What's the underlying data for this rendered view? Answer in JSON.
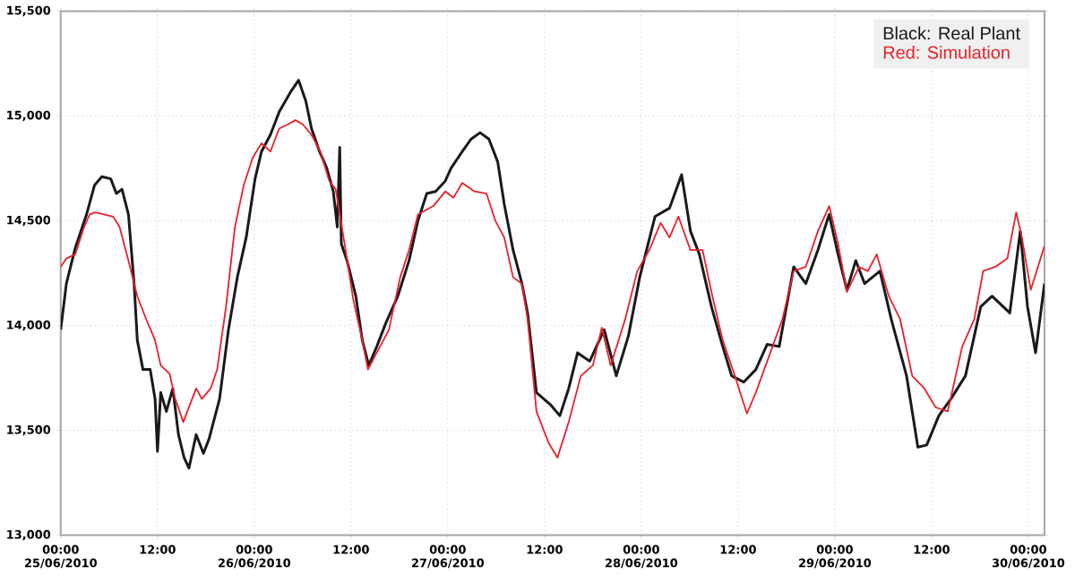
{
  "chart_data": {
    "type": "line",
    "series": [
      {
        "name": "Black: Real Plant",
        "color": "#1a1a1a",
        "x": [
          "2010-06-25T00:00",
          "2010-06-25T00:42",
          "2010-06-25T01:48",
          "2010-06-25T03:12",
          "2010-06-25T04:12",
          "2010-06-25T05:06",
          "2010-06-25T06:12",
          "2010-06-25T06:54",
          "2010-06-25T07:36",
          "2010-06-25T08:24",
          "2010-06-25T09:06",
          "2010-06-25T09:30",
          "2010-06-25T10:12",
          "2010-06-25T11:06",
          "2010-06-25T11:42",
          "2010-06-25T12:00",
          "2010-06-25T12:24",
          "2010-06-25T13:06",
          "2010-06-25T13:54",
          "2010-06-25T14:36",
          "2010-06-25T15:18",
          "2010-06-25T15:54",
          "2010-06-25T16:48",
          "2010-06-25T17:42",
          "2010-06-25T18:24",
          "2010-06-25T19:42",
          "2010-06-25T20:48",
          "2010-06-25T21:54",
          "2010-06-25T23:00",
          "2010-06-26T00:06",
          "2010-06-26T00:54",
          "2010-06-26T02:00",
          "2010-06-26T03:06",
          "2010-06-26T04:36",
          "2010-06-26T05:30",
          "2010-06-26T06:24",
          "2010-06-26T07:06",
          "2010-06-26T08:06",
          "2010-06-26T09:00",
          "2010-06-26T09:48",
          "2010-06-26T10:18",
          "2010-06-26T10:36",
          "2010-06-26T10:48",
          "2010-06-26T11:30",
          "2010-06-26T12:36",
          "2010-06-26T13:24",
          "2010-06-26T14:12",
          "2010-06-26T15:12",
          "2010-06-26T16:18",
          "2010-06-26T17:48",
          "2010-06-26T19:12",
          "2010-06-26T20:18",
          "2010-06-26T21:24",
          "2010-06-26T22:30",
          "2010-06-26T23:42",
          "2010-06-27T00:24",
          "2010-06-27T01:48",
          "2010-06-27T02:54",
          "2010-06-27T04:00",
          "2010-06-27T05:06",
          "2010-06-27T06:12",
          "2010-06-27T07:00",
          "2010-06-27T08:06",
          "2010-06-27T09:12",
          "2010-06-27T09:54",
          "2010-06-27T11:00",
          "2010-06-27T12:48",
          "2010-06-27T13:54",
          "2010-06-27T15:00",
          "2010-06-27T16:06",
          "2010-06-27T17:36",
          "2010-06-27T19:24",
          "2010-06-27T20:54",
          "2010-06-27T22:24",
          "2010-06-27T23:48",
          "2010-06-28T01:42",
          "2010-06-28T03:30",
          "2010-06-28T05:00",
          "2010-06-28T06:06",
          "2010-06-28T07:12",
          "2010-06-28T08:42",
          "2010-06-28T10:06",
          "2010-06-28T11:12",
          "2010-06-28T12:42",
          "2010-06-28T14:12",
          "2010-06-28T15:36",
          "2010-06-28T17:06",
          "2010-06-28T18:54",
          "2010-06-28T20:24",
          "2010-06-28T21:54",
          "2010-06-28T23:18",
          "2010-06-29T00:24",
          "2010-06-29T01:30",
          "2010-06-29T02:36",
          "2010-06-29T03:42",
          "2010-06-29T05:36",
          "2010-06-29T07:00",
          "2010-06-29T08:54",
          "2010-06-29T10:18",
          "2010-06-29T11:24",
          "2010-06-29T12:54",
          "2010-06-29T14:24",
          "2010-06-29T16:12",
          "2010-06-29T18:06",
          "2010-06-29T19:30",
          "2010-06-29T21:42",
          "2010-06-29T23:00",
          "2010-06-29T23:54",
          "2010-06-30T00:54",
          "2010-06-30T02:00"
        ],
        "values": [
          13980,
          14200,
          14370,
          14530,
          14670,
          14710,
          14700,
          14630,
          14650,
          14530,
          14200,
          13930,
          13790,
          13790,
          13650,
          13400,
          13680,
          13590,
          13700,
          13480,
          13370,
          13320,
          13480,
          13390,
          13460,
          13650,
          13980,
          14230,
          14420,
          14700,
          14830,
          14910,
          15020,
          15120,
          15170,
          15070,
          14940,
          14830,
          14750,
          14640,
          14470,
          14850,
          14390,
          14310,
          14140,
          13930,
          13810,
          13900,
          14010,
          14140,
          14310,
          14500,
          14630,
          14640,
          14690,
          14750,
          14830,
          14890,
          14920,
          14890,
          14780,
          14580,
          14360,
          14200,
          14060,
          13680,
          13620,
          13570,
          13700,
          13870,
          13830,
          13980,
          13760,
          13950,
          14230,
          14520,
          14560,
          14720,
          14450,
          14340,
          14090,
          13900,
          13760,
          13730,
          13790,
          13910,
          13900,
          14280,
          14200,
          14360,
          14530,
          14340,
          14170,
          14310,
          14200,
          14260,
          14030,
          13760,
          13420,
          13430,
          13570,
          13650,
          13760,
          14090,
          14140,
          14060,
          14450,
          14090,
          13870,
          14200
        ]
      },
      {
        "name": "Red: Simulation",
        "color": "#e8202a",
        "x": [
          "2010-06-25T00:00",
          "2010-06-25T00:42",
          "2010-06-25T01:48",
          "2010-06-25T02:54",
          "2010-06-25T03:36",
          "2010-06-25T04:18",
          "2010-06-25T05:24",
          "2010-06-25T06:30",
          "2010-06-25T07:18",
          "2010-06-25T08:24",
          "2010-06-25T09:30",
          "2010-06-25T10:36",
          "2010-06-25T11:42",
          "2010-06-25T12:24",
          "2010-06-25T13:30",
          "2010-06-25T14:12",
          "2010-06-25T15:12",
          "2010-06-25T15:42",
          "2010-06-25T16:48",
          "2010-06-25T17:30",
          "2010-06-25T18:36",
          "2010-06-25T19:24",
          "2010-06-25T20:30",
          "2010-06-25T21:36",
          "2010-06-25T22:42",
          "2010-06-25T23:48",
          "2010-06-26T00:54",
          "2010-06-26T02:00",
          "2010-06-26T03:06",
          "2010-06-26T04:12",
          "2010-06-26T05:06",
          "2010-06-26T06:00",
          "2010-06-26T07:06",
          "2010-06-26T08:12",
          "2010-06-26T09:18",
          "2010-06-26T10:06",
          "2010-06-26T11:12",
          "2010-06-26T12:18",
          "2010-06-26T13:24",
          "2010-06-26T14:06",
          "2010-06-26T15:12",
          "2010-06-26T16:42",
          "2010-06-26T18:06",
          "2010-06-26T19:12",
          "2010-06-26T20:18",
          "2010-06-26T22:12",
          "2010-06-26T23:42",
          "2010-06-27T00:42",
          "2010-06-27T01:48",
          "2010-06-27T03:18",
          "2010-06-27T04:48",
          "2010-06-27T05:54",
          "2010-06-27T07:00",
          "2010-06-27T08:06",
          "2010-06-27T09:12",
          "2010-06-27T09:54",
          "2010-06-27T11:00",
          "2010-06-27T12:30",
          "2010-06-27T13:36",
          "2010-06-27T15:00",
          "2010-06-27T16:30",
          "2010-06-27T18:00",
          "2010-06-27T19:06",
          "2010-06-27T20:12",
          "2010-06-27T22:00",
          "2010-06-27T23:30",
          "2010-06-28T01:00",
          "2010-06-28T02:24",
          "2010-06-28T03:30",
          "2010-06-28T04:36",
          "2010-06-28T06:06",
          "2010-06-28T07:36",
          "2010-06-28T08:42",
          "2010-06-28T10:06",
          "2010-06-28T11:36",
          "2010-06-28T13:06",
          "2010-06-28T14:12",
          "2010-06-28T16:00",
          "2010-06-28T17:30",
          "2010-06-28T18:54",
          "2010-06-28T20:24",
          "2010-06-28T21:54",
          "2010-06-28T23:18",
          "2010-06-29T00:24",
          "2010-06-29T01:30",
          "2010-06-29T03:00",
          "2010-06-29T04:06",
          "2010-06-29T05:12",
          "2010-06-29T06:42",
          "2010-06-29T08:06",
          "2010-06-29T09:36",
          "2010-06-29T11:06",
          "2010-06-29T12:30",
          "2010-06-29T14:00",
          "2010-06-29T15:48",
          "2010-06-29T17:18",
          "2010-06-29T18:24",
          "2010-06-29T19:54",
          "2010-06-29T21:24",
          "2010-06-29T22:30",
          "2010-06-29T23:12",
          "2010-06-30T00:18",
          "2010-06-30T02:00"
        ],
        "values": [
          14280,
          14320,
          14340,
          14470,
          14530,
          14540,
          14530,
          14520,
          14470,
          14310,
          14140,
          14030,
          13930,
          13810,
          13770,
          13650,
          13540,
          13590,
          13700,
          13650,
          13700,
          13790,
          14090,
          14470,
          14670,
          14800,
          14870,
          14830,
          14940,
          14960,
          14980,
          14960,
          14910,
          14830,
          14690,
          14650,
          14390,
          14120,
          13930,
          13790,
          13870,
          13980,
          14230,
          14360,
          14530,
          14570,
          14640,
          14610,
          14680,
          14640,
          14630,
          14500,
          14420,
          14230,
          14200,
          14030,
          13590,
          13440,
          13370,
          13540,
          13760,
          13810,
          13990,
          13810,
          14030,
          14260,
          14360,
          14490,
          14420,
          14520,
          14360,
          14360,
          14160,
          13930,
          13760,
          13580,
          13680,
          13870,
          14030,
          14260,
          14280,
          14450,
          14570,
          14390,
          14160,
          14280,
          14260,
          14340,
          14140,
          14030,
          13760,
          13700,
          13610,
          13590,
          13900,
          14030,
          14260,
          14280,
          14320,
          14540,
          14420,
          14170,
          14380
        ]
      }
    ],
    "xlim": [
      "2010-06-25T00:00",
      "2010-06-30T02:00"
    ],
    "ylim": [
      13000,
      15500
    ],
    "xticks": [
      {
        "value": "2010-06-25T00:00",
        "label": "00:00 25/06/2010"
      },
      {
        "value": "2010-06-25T12:00",
        "label": "12:00"
      },
      {
        "value": "2010-06-26T00:00",
        "label": "00:00 26/06/2010"
      },
      {
        "value": "2010-06-26T12:00",
        "label": "12:00"
      },
      {
        "value": "2010-06-27T00:00",
        "label": "00:00 27/06/2010"
      },
      {
        "value": "2010-06-27T12:00",
        "label": "12:00"
      },
      {
        "value": "2010-06-28T00:00",
        "label": "00:00 28/06/2010"
      },
      {
        "value": "2010-06-28T12:00",
        "label": "12:00"
      },
      {
        "value": "2010-06-29T00:00",
        "label": "00:00 29/06/2010"
      },
      {
        "value": "2010-06-29T12:00",
        "label": "12:00"
      },
      {
        "value": "2010-06-30T00:00",
        "label": "00:00 30/06/2010"
      }
    ],
    "yticks": [
      {
        "value": 13000,
        "label": "13,000"
      },
      {
        "value": 13500,
        "label": "13,500"
      },
      {
        "value": 14000,
        "label": "14,000"
      },
      {
        "value": 14500,
        "label": "14,500"
      },
      {
        "value": 15000,
        "label": "15,000"
      },
      {
        "value": 15500,
        "label": "15,500"
      }
    ],
    "grid": true,
    "legend": "top right",
    "marker": "none",
    "line_style": "solid"
  }
}
